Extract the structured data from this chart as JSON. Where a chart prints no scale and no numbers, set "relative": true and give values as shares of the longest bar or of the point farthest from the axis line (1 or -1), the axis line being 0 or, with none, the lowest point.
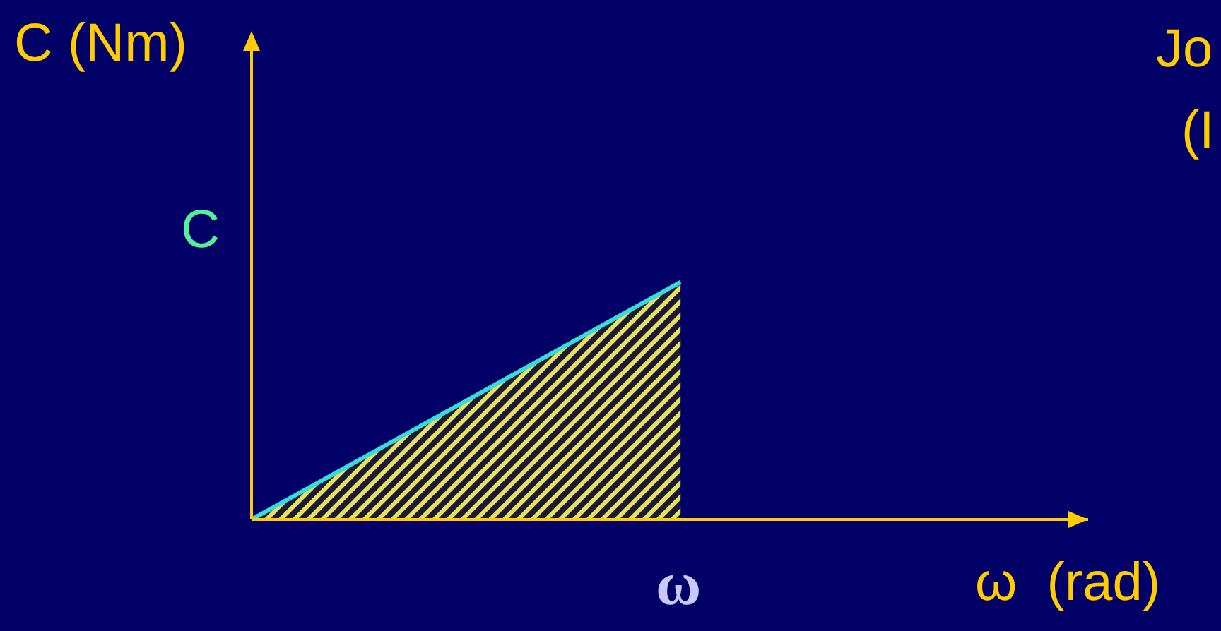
{
  "chart_data": {
    "type": "area",
    "relative": true,
    "ylabel": "C (Nm)",
    "xlabel": "ω  (rad)",
    "categories": [
      null,
      null
    ],
    "series": [
      {
        "color": "#33dddd",
        "values": [
          0,
          1
        ]
      }
    ],
    "annotations": [
      "C",
      "Jo",
      "(I",
      "ω"
    ],
    "grid": false,
    "legend": false
  }
}
